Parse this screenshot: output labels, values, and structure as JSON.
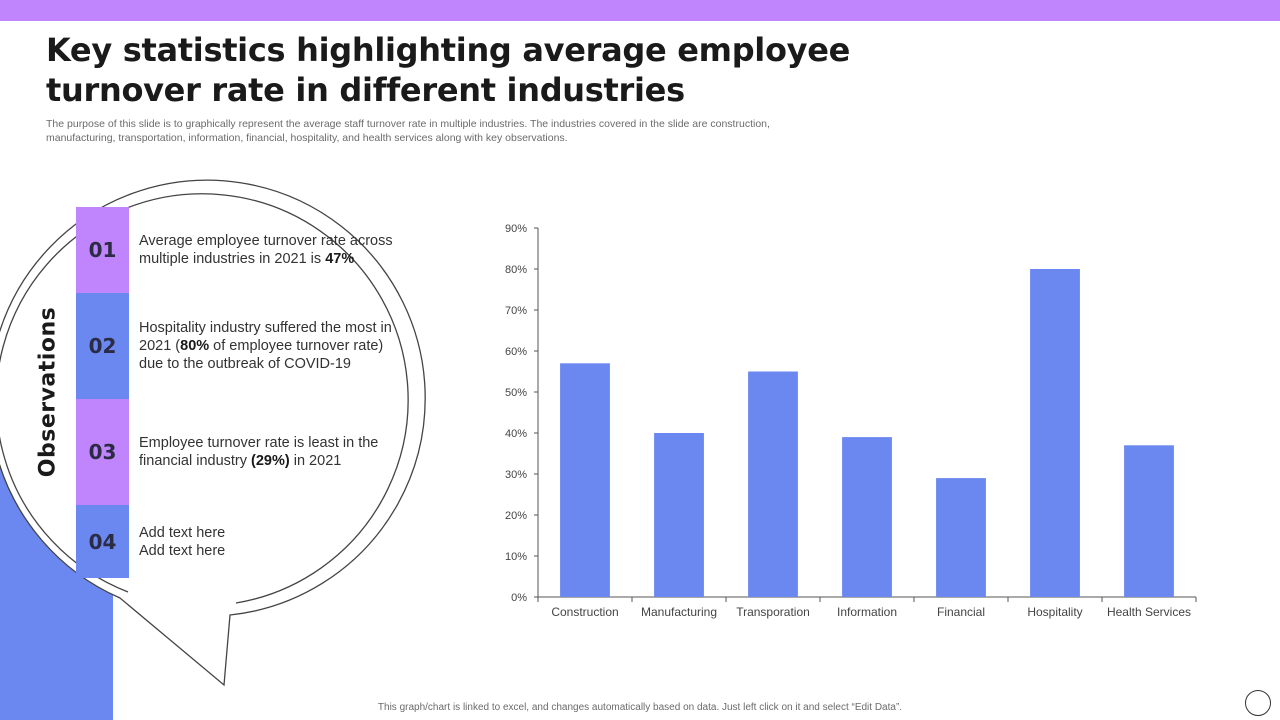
{
  "title": "Key statistics highlighting average employee turnover rate in different industries",
  "subtitle": "The purpose of this slide is to graphically represent the average staff turnover rate in multiple industries. The industries covered in the slide are construction, manufacturing, transportation, information, financial, hospitality, and health services along with key observations.",
  "observations": {
    "heading": "Observations",
    "items": [
      {
        "num": "01",
        "before": "Average employee turnover rate across multiple industries in 2021 is ",
        "bold": "47%",
        "after": ""
      },
      {
        "num": "02",
        "before": "Hospitality industry suffered the most in 2021 (",
        "bold": "80%",
        "after": " of employee turnover rate) due to the outbreak of COVID-19"
      },
      {
        "num": "03",
        "before": "Employee turnover rate is least in the financial industry ",
        "bold": "(29%)",
        "after": " in 2021"
      },
      {
        "num": "04",
        "line1": "Add text here",
        "line2": "Add text here"
      }
    ]
  },
  "chart_data": {
    "type": "bar",
    "title": "",
    "xlabel": "",
    "ylabel": "",
    "categories": [
      "Construction",
      "Manufacturing",
      "Transporation",
      "Information",
      "Financial",
      "Hospitality",
      "Health Services"
    ],
    "values": [
      57,
      40,
      55,
      39,
      29,
      80,
      37
    ],
    "ylim": [
      0,
      90
    ],
    "yticks": [
      0,
      10,
      20,
      30,
      40,
      50,
      60,
      70,
      80,
      90
    ],
    "ytick_labels": [
      "0%",
      "10%",
      "20%",
      "30%",
      "40%",
      "50%",
      "60%",
      "70%",
      "80%",
      "90%"
    ],
    "bar_color": "#6b88f0",
    "grid": false,
    "legend": "none"
  },
  "footnote": "This graph/chart is linked to excel, and changes automatically based on data. Just left click on it and select “Edit Data”.",
  "colors": {
    "accent_purple": "#c084fc",
    "accent_blue": "#6b88f0"
  }
}
